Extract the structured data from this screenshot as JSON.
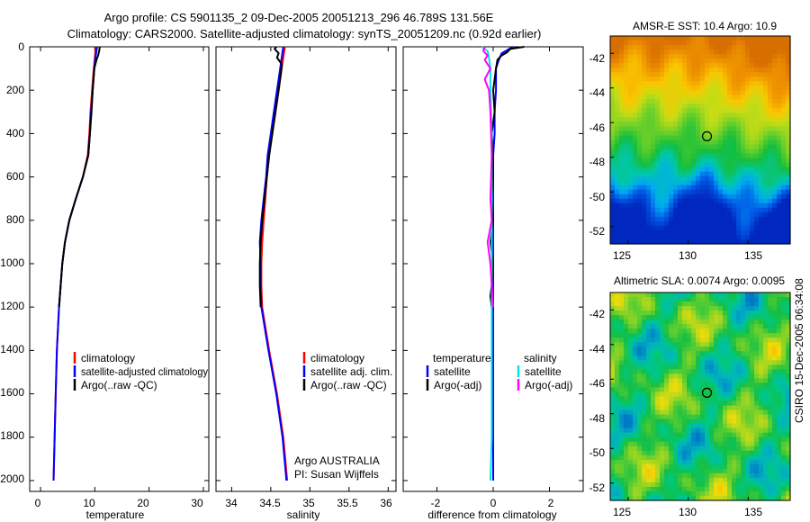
{
  "figure": {
    "title_line1": "Argo profile: CS 5901135_2 09-Dec-2005 20051213_296 46.789S 131.56E",
    "title_line2": "Climatology: CARS2000. Satellite-adjusted climatology: synTS_20051209.nc (0.92d earlier)",
    "credit": "CSIRO 15-Dec-2005 06:34:08"
  },
  "colors": {
    "climatology": "#ff0000",
    "satellite": "#0000ff",
    "argo": "#000000",
    "sat_salinity": "#00e5e5",
    "argo_salinity": "#ff00ff"
  },
  "chart_data": [
    {
      "id": "temperature",
      "type": "line",
      "xlabel": "temperature",
      "ylabel": "",
      "xlim": [
        -2,
        31
      ],
      "ylim": [
        2050,
        0
      ],
      "xticks": [
        "0",
        "10",
        "20",
        "30"
      ],
      "yticks": [
        "0",
        "200",
        "400",
        "600",
        "800",
        "1000",
        "1200",
        "1400",
        "1600",
        "1800",
        "2000"
      ],
      "legend": [
        {
          "label": "climatology",
          "color": "#ff0000"
        },
        {
          "label": "satellite-adjusted climatology",
          "color": "#0000ff"
        },
        {
          "label": "Argo(..raw -QC)",
          "color": "#000000"
        }
      ],
      "series": [
        {
          "name": "climatology",
          "color": "#ff0000",
          "depth": [
            0,
            20,
            50,
            100,
            200,
            300,
            400,
            500,
            600,
            700,
            800,
            900,
            1000,
            1200,
            1400,
            1600,
            1800,
            2000
          ],
          "values": [
            10.2,
            10.1,
            10.0,
            9.8,
            9.5,
            9.2,
            9.0,
            8.7,
            7.8,
            6.5,
            5.3,
            4.5,
            4.0,
            3.4,
            3.0,
            2.8,
            2.6,
            2.4
          ]
        },
        {
          "name": "satellite-adjusted climatology",
          "color": "#0000ff",
          "depth": [
            0,
            20,
            50,
            100,
            200,
            300,
            400,
            500,
            600,
            700,
            800,
            900,
            1000,
            1200,
            1400,
            1600,
            1800,
            2000
          ],
          "values": [
            10.4,
            10.3,
            10.1,
            9.9,
            9.6,
            9.3,
            9.1,
            8.8,
            7.8,
            6.5,
            5.3,
            4.5,
            4.0,
            3.4,
            3.0,
            2.8,
            2.6,
            2.4
          ]
        },
        {
          "name": "Argo(..raw -QC)",
          "color": "#000000",
          "depth": [
            0,
            20,
            40,
            60,
            100,
            200,
            300,
            400,
            500,
            600,
            700,
            800,
            900,
            1000,
            1200
          ],
          "values": [
            10.9,
            10.8,
            10.6,
            10.3,
            9.9,
            9.6,
            9.4,
            9.1,
            8.8,
            7.8,
            6.5,
            5.3,
            4.5,
            4.0,
            3.4
          ]
        }
      ]
    },
    {
      "id": "salinity",
      "type": "line",
      "xlabel": "salinity",
      "ylabel": "",
      "xlim": [
        33.8,
        36.1
      ],
      "ylim": [
        2050,
        0
      ],
      "xticks": [
        "34",
        "34.5",
        "35",
        "35.5",
        "36"
      ],
      "legend": [
        {
          "label": "climatology",
          "color": "#ff0000"
        },
        {
          "label": "satellite adj. clim.",
          "color": "#0000ff"
        },
        {
          "label": "Argo(..raw -QC)",
          "color": "#000000"
        }
      ],
      "annotations": [
        "Argo AUSTRALIA",
        "PI: Susan Wijffels"
      ],
      "series": [
        {
          "name": "climatology",
          "color": "#ff0000",
          "depth": [
            0,
            50,
            100,
            200,
            300,
            400,
            500,
            600,
            700,
            800,
            900,
            1000,
            1100,
            1200,
            1400,
            1600,
            1800,
            2000
          ],
          "values": [
            34.68,
            34.66,
            34.64,
            34.6,
            34.56,
            34.52,
            34.48,
            34.45,
            34.43,
            34.41,
            34.39,
            34.38,
            34.38,
            34.39,
            34.48,
            34.58,
            34.66,
            34.71
          ]
        },
        {
          "name": "satellite adj. clim.",
          "color": "#0000ff",
          "depth": [
            0,
            50,
            100,
            200,
            300,
            400,
            500,
            600,
            700,
            800,
            900,
            1000,
            1100,
            1200,
            1400,
            1600,
            1800,
            2000
          ],
          "values": [
            34.66,
            34.64,
            34.62,
            34.58,
            34.54,
            34.5,
            34.46,
            34.44,
            34.41,
            34.38,
            34.36,
            34.37,
            34.37,
            34.38,
            34.47,
            34.57,
            34.65,
            34.7
          ]
        },
        {
          "name": "Argo(..raw -QC)",
          "color": "#000000",
          "depth": [
            0,
            10,
            30,
            50,
            80,
            120,
            200,
            300,
            400,
            500,
            600,
            700,
            800,
            900,
            1000,
            1100,
            1200
          ],
          "values": [
            34.57,
            34.55,
            34.6,
            34.58,
            34.64,
            34.63,
            34.6,
            34.56,
            34.52,
            34.48,
            34.45,
            34.42,
            34.39,
            34.37,
            34.36,
            34.36,
            34.37
          ]
        }
      ]
    },
    {
      "id": "difference",
      "type": "line",
      "xlabel": "difference from climatology",
      "ylabel": "",
      "xlim": [
        -3.2,
        3.2
      ],
      "ylim": [
        2050,
        0
      ],
      "xticks": [
        "-2",
        "0",
        "2"
      ],
      "legend": [
        {
          "label": "temperature",
          "color": ""
        },
        {
          "label": "satellite",
          "color": "#0000ff"
        },
        {
          "label": "Argo(-adj)",
          "color": "#000000"
        },
        {
          "label": "salinity",
          "color": ""
        },
        {
          "label": "satellite",
          "color": "#00e5e5"
        },
        {
          "label": "Argo(-adj)",
          "color": "#ff00ff"
        }
      ],
      "series": [
        {
          "name": "temperature satellite",
          "color": "#0000ff",
          "depth": [
            0,
            30,
            60,
            100,
            200,
            300,
            400,
            500,
            600,
            800,
            1000,
            1200,
            1400,
            1600,
            1800,
            2000
          ],
          "values": [
            0.7,
            0.3,
            0.2,
            0.1,
            0.1,
            0.05,
            0.05,
            0.0,
            0.0,
            0.0,
            0.0,
            0.0,
            0.0,
            0.0,
            0.0,
            0.0
          ]
        },
        {
          "name": "temperature Argo(-adj)",
          "color": "#000000",
          "depth": [
            0,
            10,
            25,
            40,
            60,
            100,
            200,
            300,
            400,
            500,
            600,
            700,
            800,
            900,
            1000,
            1100,
            1150,
            1200
          ],
          "values": [
            1.1,
            0.6,
            0.5,
            0.3,
            0.15,
            0.1,
            0.0,
            0.05,
            -0.05,
            0.0,
            0.0,
            -0.05,
            0.0,
            -0.1,
            0.0,
            -0.05,
            -0.1,
            -0.05
          ]
        },
        {
          "name": "salinity satellite",
          "color": "#00e5e5",
          "depth": [
            0,
            20,
            50,
            100,
            200,
            400,
            600,
            800,
            1000,
            1200,
            1400,
            1600,
            1800,
            2000
          ],
          "values": [
            -0.4,
            -0.2,
            -0.15,
            -0.1,
            -0.1,
            -0.05,
            -0.05,
            -0.05,
            -0.05,
            -0.05,
            -0.05,
            -0.05,
            -0.05,
            -0.1
          ]
        },
        {
          "name": "salinity Argo(-adj)",
          "color": "#ff00ff",
          "depth": [
            0,
            20,
            40,
            60,
            100,
            150,
            200,
            300,
            500,
            700,
            800,
            900,
            1000,
            1100,
            1200
          ],
          "values": [
            -0.3,
            -0.35,
            -0.2,
            -0.3,
            -0.1,
            -0.3,
            -0.15,
            -0.1,
            -0.05,
            -0.1,
            -0.05,
            -0.2,
            -0.1,
            -0.05,
            0.0
          ]
        }
      ]
    },
    {
      "id": "sst-map",
      "type": "heatmap",
      "title": "AMSR-E SST: 10.4 Argo: 10.9",
      "xlim": [
        123.5,
        138.5
      ],
      "ylim": [
        -53,
        -41
      ],
      "xticks": [
        "125",
        "130",
        "135"
      ],
      "yticks": [
        "-42",
        "-44",
        "-46",
        "-48",
        "-50",
        "-52"
      ],
      "marker": {
        "lon": 131.56,
        "lat": -46.789,
        "label": "Argo float"
      }
    },
    {
      "id": "sla-map",
      "type": "heatmap",
      "title": "Altimetric SLA: 0.0074 Argo: 0.0095",
      "xlim": [
        123.5,
        138.5
      ],
      "ylim": [
        -53,
        -41
      ],
      "xticks": [
        "125",
        "130",
        "135"
      ],
      "yticks": [
        "-42",
        "-44",
        "-46",
        "-48",
        "-50",
        "-52"
      ],
      "marker": {
        "lon": 131.56,
        "lat": -46.789,
        "label": "Argo float"
      }
    }
  ]
}
